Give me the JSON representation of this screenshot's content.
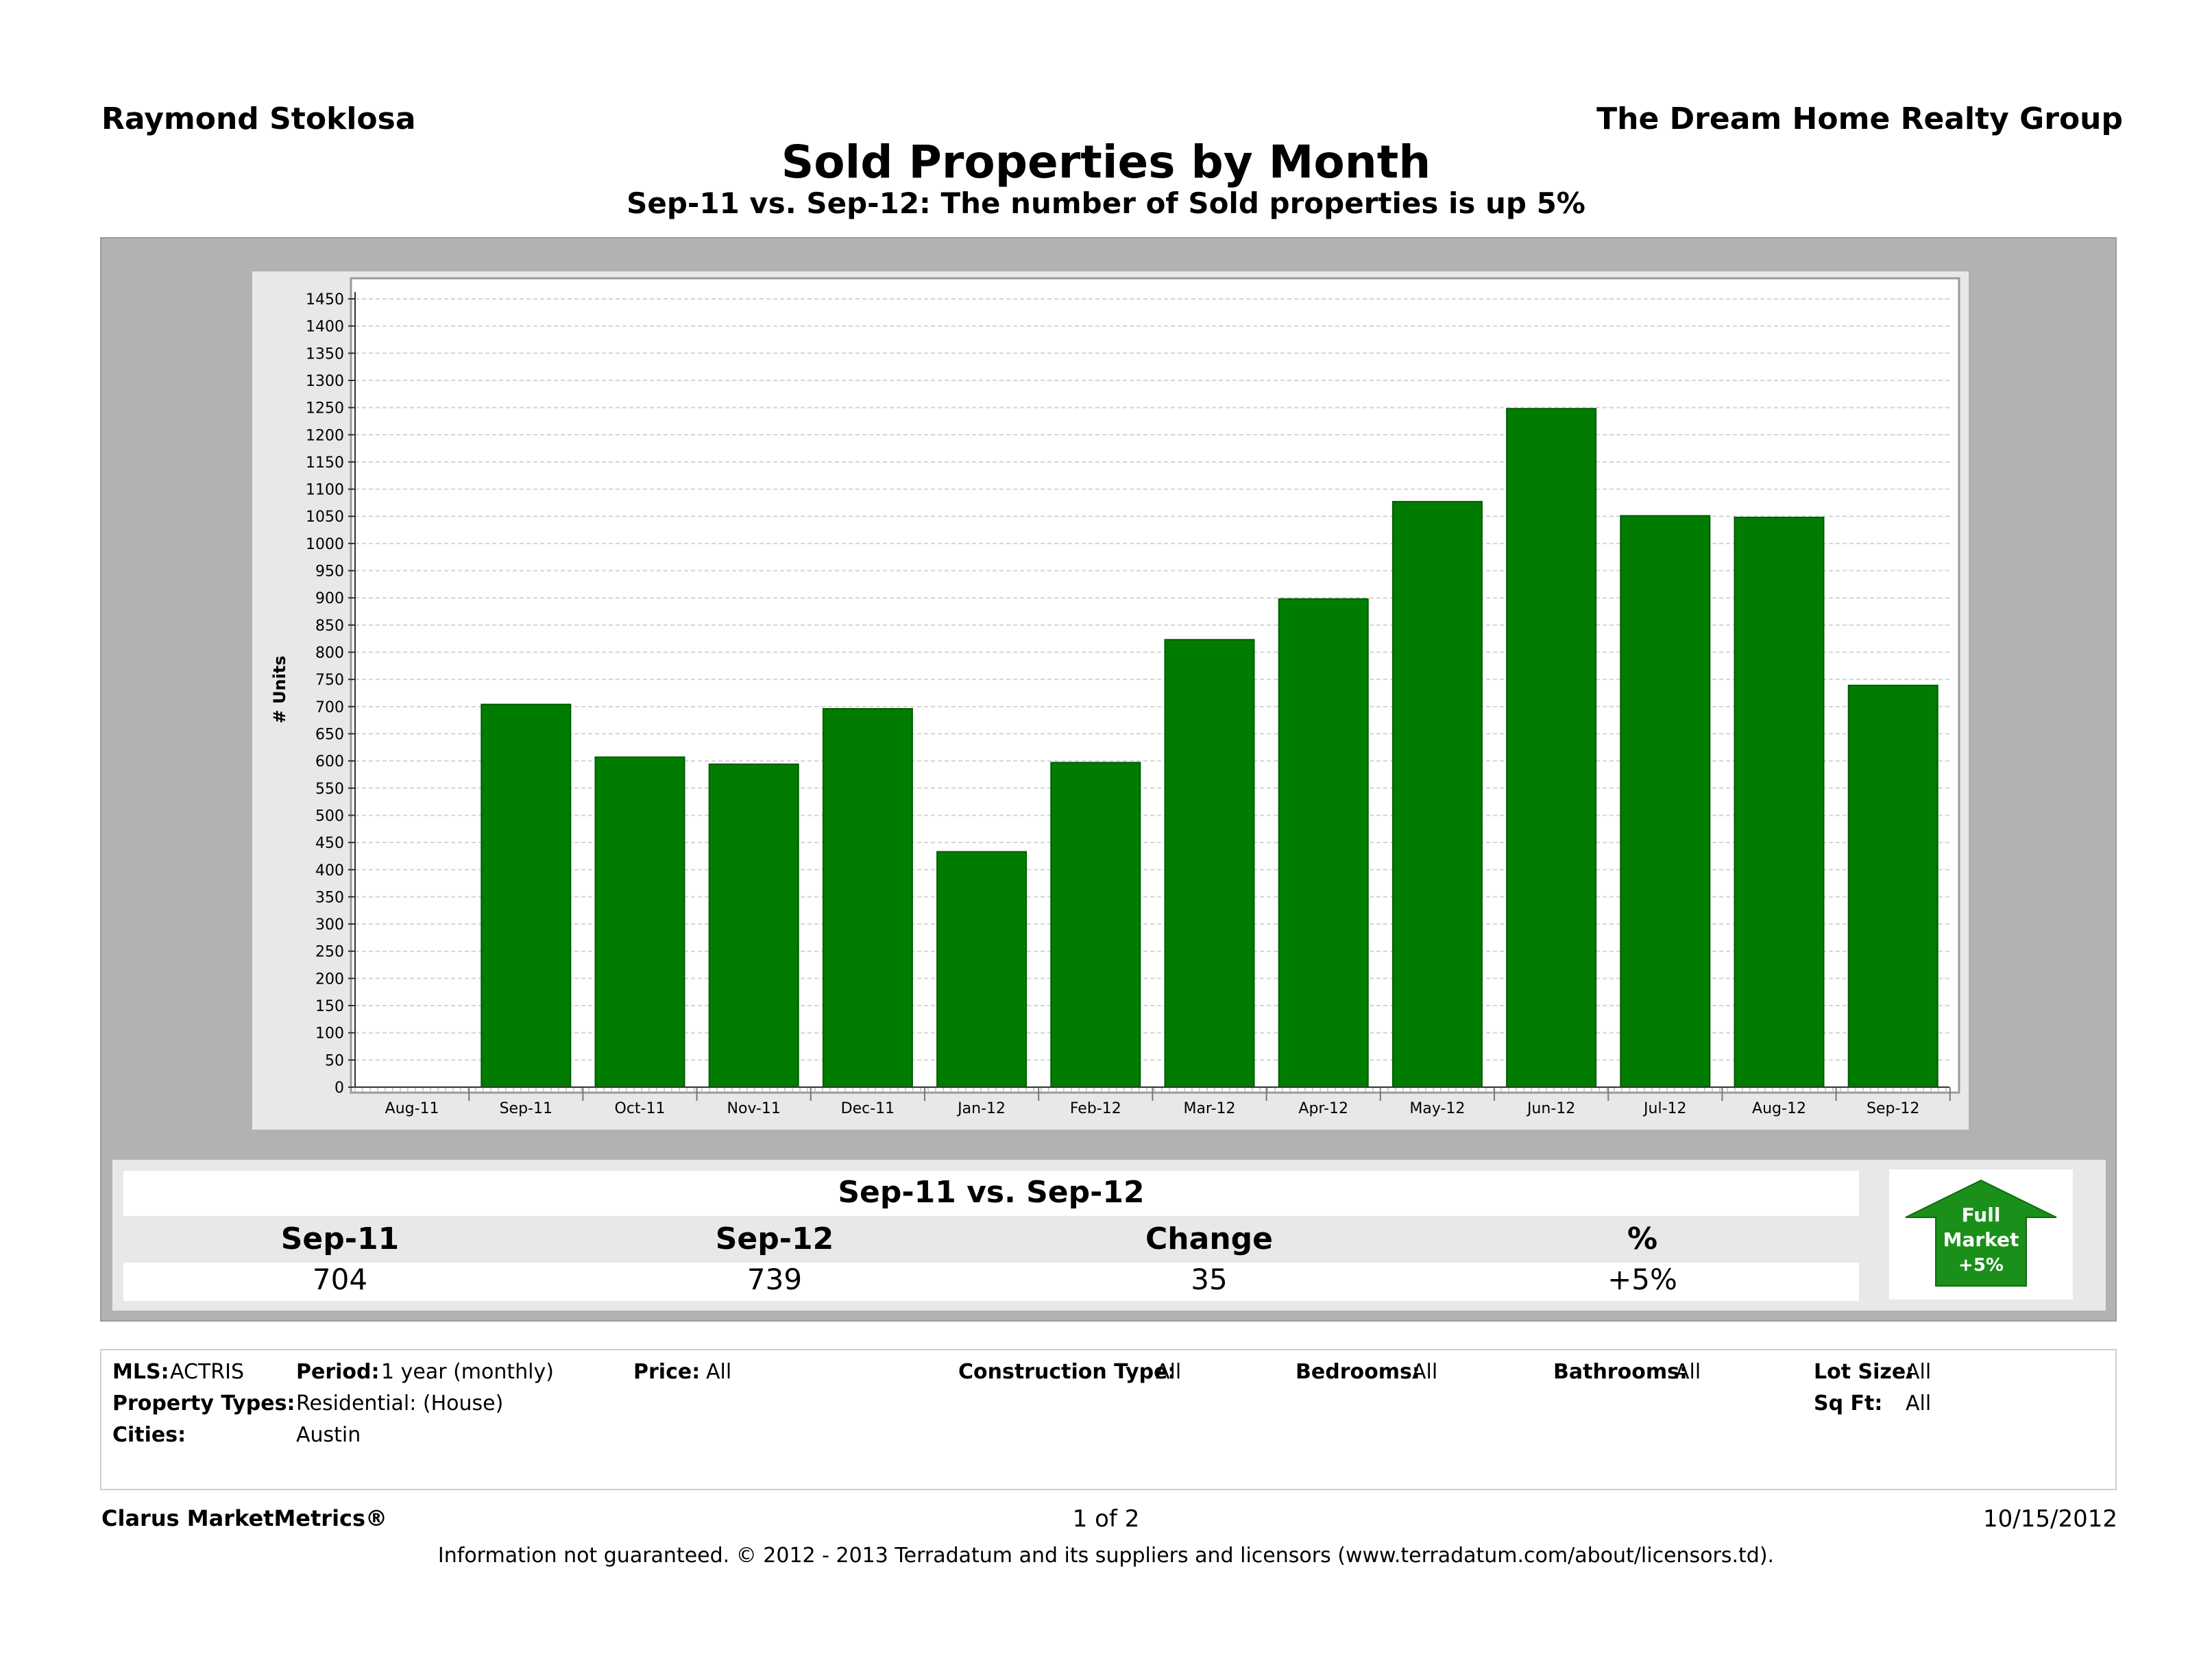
{
  "header": {
    "agent": "Raymond Stoklosa",
    "company": "The Dream Home Realty Group",
    "title": "Sold Properties by Month",
    "subtitle": "Sep-11 vs. Sep-12: The number of Sold properties is up 5%"
  },
  "colors": {
    "bar": "#007d00",
    "panel": "#b2b2b2",
    "badge": "#1a8f1a"
  },
  "chart_data": {
    "type": "bar",
    "title": "",
    "xlabel": "",
    "ylabel": "# Units",
    "ylim": [
      0,
      1450
    ],
    "y_tick_step": 50,
    "grid": true,
    "categories": [
      "Aug-11",
      "Sep-11",
      "Oct-11",
      "Nov-11",
      "Dec-11",
      "Jan-12",
      "Feb-12",
      "Mar-12",
      "Apr-12",
      "May-12",
      "Jun-12",
      "Jul-12",
      "Aug-12",
      "Sep-12"
    ],
    "values": [
      null,
      704,
      607,
      594,
      696,
      433,
      597,
      823,
      898,
      1077,
      1248,
      1051,
      1048,
      739
    ]
  },
  "summary": {
    "title": "Sep-11 vs. Sep-12",
    "headers": [
      "Sep-11",
      "Sep-12",
      "Change",
      "%"
    ],
    "values": [
      "704",
      "739",
      "35",
      "+5%"
    ],
    "badge": {
      "line1": "Full",
      "line2": "Market",
      "line3": "+5%",
      "icon": "up-arrow-icon"
    }
  },
  "criteria": {
    "mls_label": "MLS:",
    "mls_value": "ACTRIS",
    "period_label": "Period:",
    "period_value": "1 year (monthly)",
    "price_label": "Price:",
    "price_value": "All",
    "construction_label": "Construction Type:",
    "construction_value": "All",
    "bedrooms_label": "Bedrooms:",
    "bedrooms_value": "All",
    "bathrooms_label": "Bathrooms:",
    "bathrooms_value": "All",
    "lot_label": "Lot Size:",
    "lot_value": "All",
    "types_label": "Property Types:",
    "types_value": "Residential: (House)",
    "sqft_label": "Sq Ft:",
    "sqft_value": "All",
    "cities_label": "Cities:",
    "cities_value": "Austin"
  },
  "footer": {
    "brand": "Clarus MarketMetrics®",
    "page": "1 of 2",
    "date": "10/15/2012",
    "disclaimer": "Information not guaranteed.  © 2012 - 2013 Terradatum and its suppliers and licensors (www.terradatum.com/about/licensors.td)."
  }
}
